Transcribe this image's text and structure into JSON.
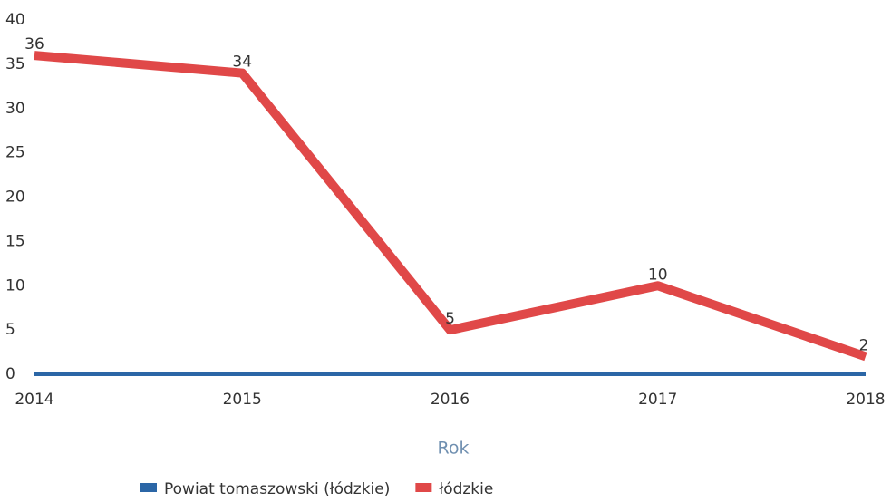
{
  "chart_data": {
    "type": "line",
    "x_label": "Rok",
    "categories": [
      "2014",
      "2015",
      "2016",
      "2017",
      "2018"
    ],
    "series": [
      {
        "name": "Powiat tomaszowski (łódzkie)",
        "color": "#2b66a6",
        "values": [
          0,
          0,
          0,
          0,
          0
        ]
      },
      {
        "name": "łódzkie",
        "color": "#e04848",
        "values": [
          36,
          34,
          5,
          10,
          2
        ]
      }
    ],
    "ylim": [
      0,
      40
    ],
    "yticks": [
      0,
      5,
      10,
      15,
      20,
      25,
      30,
      35,
      40
    ],
    "grid": false
  }
}
